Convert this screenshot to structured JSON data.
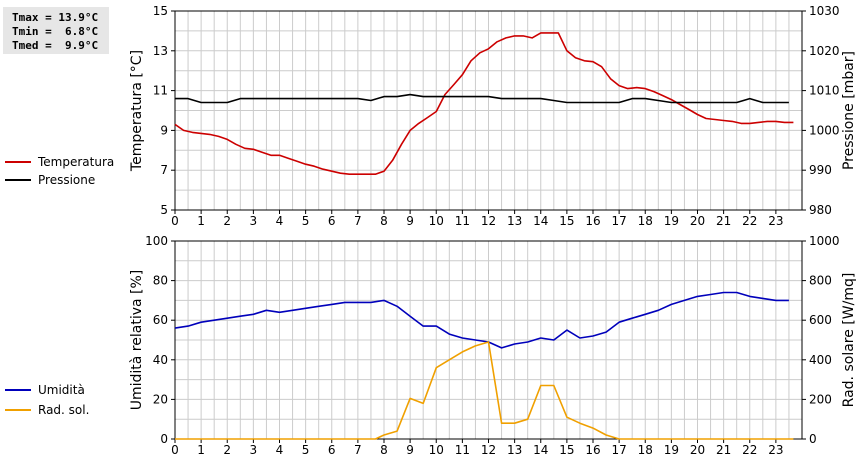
{
  "stats": {
    "tmax": "Tmax = 13.9°C",
    "tmin": "Tmin =  6.8°C",
    "tmed": "Tmed =  9.9°C"
  },
  "colors": {
    "temperature": "#cc0000",
    "pressure": "#000000",
    "humidity": "#0000bb",
    "solar": "#f0a000",
    "grid": "#cccccc"
  },
  "chart_data": [
    {
      "type": "line",
      "title": "",
      "xlabel": "",
      "ylabel": "Temperatura [°C]",
      "ylabel_right": "Pressione [mbar]",
      "xlim": [
        0,
        24
      ],
      "ylim": [
        5,
        15
      ],
      "ylim_right": [
        980,
        1030
      ],
      "x_ticks": [
        "0",
        "1",
        "2",
        "3",
        "4",
        "5",
        "6",
        "7",
        "8",
        "9",
        "10",
        "11",
        "12",
        "13",
        "14",
        "15",
        "16",
        "17",
        "18",
        "19",
        "20",
        "21",
        "22",
        "23"
      ],
      "y_ticks": [
        "5",
        "7",
        "9",
        "11",
        "13",
        "15"
      ],
      "y_ticks_right": [
        "980",
        "990",
        "1000",
        "1010",
        "1020",
        "1030"
      ],
      "grid": true,
      "legend": "left",
      "series": [
        {
          "name": "Temperatura",
          "axis": "left",
          "x": [
            0,
            0.33,
            0.67,
            1,
            1.33,
            1.67,
            2,
            2.33,
            2.67,
            3,
            3.33,
            3.67,
            4,
            4.33,
            4.67,
            5,
            5.33,
            5.67,
            6,
            6.33,
            6.67,
            7,
            7.33,
            7.67,
            8,
            8.33,
            8.67,
            9,
            9.33,
            9.67,
            10,
            10.33,
            10.67,
            11,
            11.33,
            11.67,
            12,
            12.33,
            12.67,
            13,
            13.33,
            13.67,
            14,
            14.33,
            14.67,
            15,
            15.33,
            15.67,
            16,
            16.33,
            16.67,
            17,
            17.33,
            17.67,
            18,
            18.33,
            18.67,
            19,
            19.33,
            19.67,
            20,
            20.33,
            20.67,
            21,
            21.33,
            21.67,
            22,
            22.33,
            22.67,
            23,
            23.33,
            23.67
          ],
          "values": [
            9.3,
            9.0,
            8.9,
            8.85,
            8.8,
            8.7,
            8.55,
            8.3,
            8.1,
            8.05,
            7.9,
            7.75,
            7.75,
            7.6,
            7.45,
            7.3,
            7.2,
            7.05,
            6.95,
            6.85,
            6.8,
            6.8,
            6.8,
            6.8,
            6.95,
            7.5,
            8.3,
            9.0,
            9.35,
            9.65,
            9.95,
            10.8,
            11.3,
            11.8,
            12.5,
            12.9,
            13.1,
            13.45,
            13.65,
            13.75,
            13.75,
            13.65,
            13.9,
            13.9,
            13.9,
            13.0,
            12.65,
            12.5,
            12.45,
            12.2,
            11.6,
            11.25,
            11.1,
            11.15,
            11.1,
            10.95,
            10.75,
            10.55,
            10.3,
            10.05,
            9.8,
            9.6,
            9.55,
            9.5,
            9.45,
            9.35,
            9.35,
            9.4,
            9.45,
            9.45,
            9.4,
            9.4
          ]
        },
        {
          "name": "Pressione",
          "axis": "right",
          "x": [
            0,
            0.5,
            1,
            1.5,
            2,
            2.5,
            3,
            3.5,
            4,
            4.5,
            5,
            5.5,
            6,
            6.5,
            7,
            7.5,
            8,
            8.5,
            9,
            9.5,
            10,
            10.5,
            11,
            11.5,
            12,
            12.5,
            13,
            13.5,
            14,
            14.5,
            15,
            15.5,
            16,
            16.5,
            17,
            17.5,
            18,
            18.5,
            19,
            19.5,
            20,
            20.5,
            21,
            21.5,
            22,
            22.5,
            23,
            23.5
          ],
          "values": [
            1008,
            1008,
            1007,
            1007,
            1007,
            1008,
            1008,
            1008,
            1008,
            1008,
            1008,
            1008,
            1008,
            1008,
            1008,
            1007.5,
            1008.5,
            1008.5,
            1009,
            1008.5,
            1008.5,
            1008.5,
            1008.5,
            1008.5,
            1008.5,
            1008,
            1008,
            1008,
            1008,
            1007.5,
            1007,
            1007,
            1007,
            1007,
            1007,
            1008,
            1008,
            1007.5,
            1007,
            1007,
            1007,
            1007,
            1007,
            1007,
            1008,
            1007,
            1007,
            1007
          ]
        }
      ]
    },
    {
      "type": "line",
      "title": "",
      "xlabel": "",
      "ylabel": "Umidità relativa [%]",
      "ylabel_right": "Rad. solare [W/mq]",
      "xlim": [
        0,
        24
      ],
      "ylim": [
        0,
        100
      ],
      "ylim_right": [
        0,
        1000
      ],
      "x_ticks": [
        "0",
        "1",
        "2",
        "3",
        "4",
        "5",
        "6",
        "7",
        "8",
        "9",
        "10",
        "11",
        "12",
        "13",
        "14",
        "15",
        "16",
        "17",
        "18",
        "19",
        "20",
        "21",
        "22",
        "23"
      ],
      "y_ticks": [
        "0",
        "20",
        "40",
        "60",
        "80",
        "100"
      ],
      "y_ticks_right": [
        "0",
        "200",
        "400",
        "600",
        "800",
        "1000"
      ],
      "grid": true,
      "legend": "left",
      "series": [
        {
          "name": "Umidità",
          "axis": "left",
          "x": [
            0,
            0.5,
            1,
            1.5,
            2,
            2.5,
            3,
            3.5,
            4,
            4.5,
            5,
            5.5,
            6,
            6.5,
            7,
            7.5,
            8,
            8.5,
            9,
            9.5,
            10,
            10.5,
            11,
            11.5,
            12,
            12.5,
            13,
            13.5,
            14,
            14.5,
            15,
            15.5,
            16,
            16.5,
            17,
            17.5,
            18,
            18.5,
            19,
            19.5,
            20,
            20.5,
            21,
            21.5,
            22,
            22.5,
            23,
            23.5
          ],
          "values": [
            56,
            57,
            59,
            60,
            61,
            62,
            63,
            65,
            64,
            65,
            66,
            67,
            68,
            69,
            69,
            69,
            70,
            67,
            62,
            57,
            57,
            53,
            51,
            50,
            49,
            46,
            48,
            49,
            51,
            50,
            55,
            51,
            52,
            54,
            59,
            61,
            63,
            65,
            68,
            70,
            72,
            73,
            74,
            74,
            72,
            71,
            70,
            70
          ]
        },
        {
          "name": "Rad. sol.",
          "axis": "right",
          "x": [
            0,
            1,
            2,
            3,
            4,
            5,
            6,
            7,
            7.67,
            8,
            8.5,
            9,
            9.5,
            10,
            10.5,
            11,
            11.5,
            12,
            12.5,
            13,
            13.5,
            14,
            14.5,
            15,
            15.5,
            16,
            16.5,
            17,
            18,
            19,
            20,
            21,
            22,
            23,
            23.67
          ],
          "values": [
            0,
            0,
            0,
            0,
            0,
            0,
            0,
            0,
            0,
            20,
            40,
            205,
            180,
            360,
            400,
            440,
            470,
            490,
            80,
            80,
            100,
            270,
            270,
            110,
            80,
            55,
            20,
            0,
            0,
            0,
            0,
            0,
            0,
            0,
            0
          ]
        }
      ]
    }
  ]
}
